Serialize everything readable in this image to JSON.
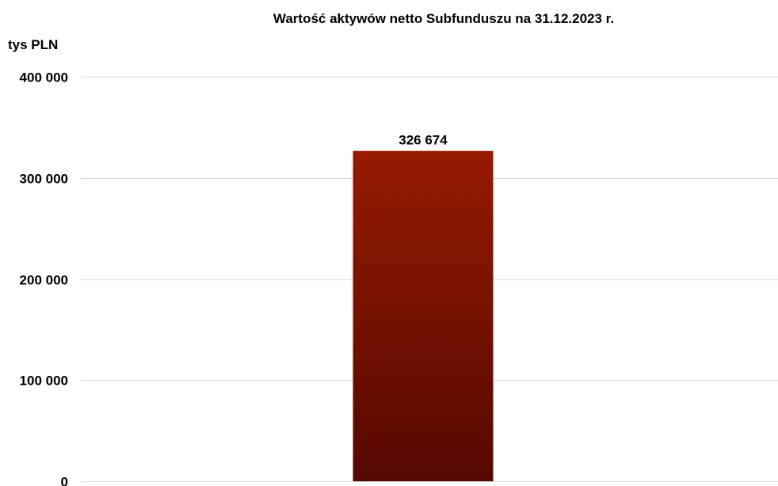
{
  "chart_data": {
    "type": "bar",
    "title": "Wartość aktywów netto Subfunduszu na 31.12.2023 r.",
    "ylabel": "tys PLN",
    "xlabel": "",
    "categories": [
      ""
    ],
    "values": [
      326674
    ],
    "value_labels": [
      "326 674"
    ],
    "ylim": [
      0,
      400000
    ],
    "yticks": [
      0,
      100000,
      200000,
      300000,
      400000
    ],
    "ytick_labels": [
      "0",
      "100 000",
      "200 000",
      "300 000",
      "400 000"
    ],
    "grid": true,
    "legend": "none",
    "colors": {
      "bar_top": "#961a00",
      "bar_bottom": "#550800",
      "grid": "#d9d9d9"
    }
  }
}
